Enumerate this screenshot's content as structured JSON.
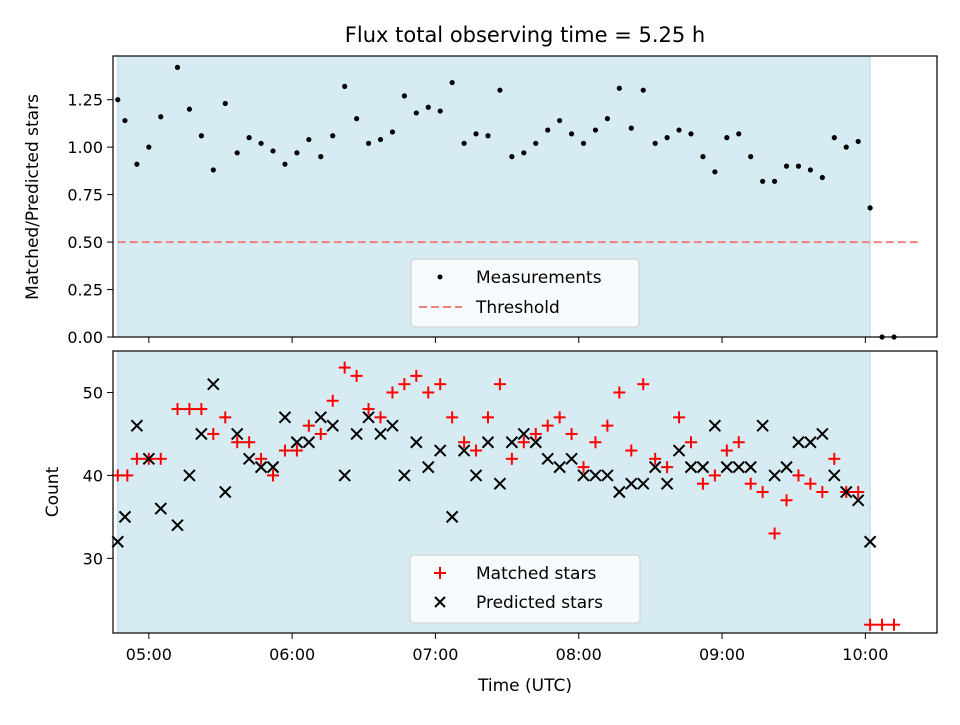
{
  "chart_data": [
    {
      "type": "scatter",
      "title": "Flux total observing time = 5.25 h",
      "ylabel": "Matched/Predicted stars",
      "xlabel": "",
      "xlim": [
        "04:45",
        "10:30"
      ],
      "ylim": [
        0.0,
        1.48
      ],
      "yticks": [
        0.0,
        0.25,
        0.5,
        0.75,
        1.0,
        1.25
      ],
      "ytick_labels": [
        "0.00",
        "0.25",
        "0.50",
        "0.75",
        "1.00",
        "1.25"
      ],
      "observing_window": [
        "04:47",
        "10:02"
      ],
      "legend_placement": "bottom-center",
      "series": [
        {
          "name": "Measurements",
          "marker": "dot",
          "color": "#000000",
          "x": [
            "04:47",
            "04:50",
            "04:55",
            "05:00",
            "05:05",
            "05:12",
            "05:17",
            "05:22",
            "05:27",
            "05:32",
            "05:37",
            "05:42",
            "05:47",
            "05:52",
            "05:57",
            "06:02",
            "06:07",
            "06:12",
            "06:17",
            "06:22",
            "06:27",
            "06:32",
            "06:37",
            "06:42",
            "06:47",
            "06:52",
            "06:57",
            "07:02",
            "07:07",
            "07:12",
            "07:17",
            "07:22",
            "07:27",
            "07:32",
            "07:37",
            "07:42",
            "07:47",
            "07:52",
            "07:57",
            "08:02",
            "08:07",
            "08:12",
            "08:17",
            "08:22",
            "08:27",
            "08:32",
            "08:37",
            "08:42",
            "08:47",
            "08:52",
            "08:57",
            "09:02",
            "09:07",
            "09:12",
            "09:17",
            "09:22",
            "09:27",
            "09:32",
            "09:37",
            "09:42",
            "09:47",
            "09:52",
            "09:57",
            "10:02",
            "10:07",
            "10:12"
          ],
          "y": [
            1.25,
            1.14,
            0.91,
            1.0,
            1.16,
            1.42,
            1.2,
            1.06,
            0.88,
            1.23,
            0.97,
            1.05,
            1.02,
            0.98,
            0.91,
            0.97,
            1.04,
            0.95,
            1.06,
            1.32,
            1.15,
            1.02,
            1.04,
            1.08,
            1.27,
            1.18,
            1.21,
            1.19,
            1.34,
            1.02,
            1.07,
            1.06,
            1.3,
            0.95,
            0.97,
            1.02,
            1.09,
            1.14,
            1.07,
            1.02,
            1.09,
            1.15,
            1.31,
            1.1,
            1.3,
            1.02,
            1.05,
            1.09,
            1.07,
            0.95,
            0.87,
            1.05,
            1.07,
            0.95,
            0.82,
            0.82,
            0.9,
            0.9,
            0.88,
            0.84,
            1.05,
            1.0,
            1.03,
            0.68,
            0.0,
            0.0
          ]
        },
        {
          "name": "Threshold",
          "marker": "dashed-line",
          "color": "#f08080",
          "x": [
            "04:47",
            "10:22"
          ],
          "y": [
            0.5,
            0.5
          ]
        }
      ]
    },
    {
      "type": "scatter",
      "title": "",
      "ylabel": "Count",
      "xlabel": "Time (UTC)",
      "xlim": [
        "04:45",
        "10:30"
      ],
      "ylim": [
        21,
        55
      ],
      "yticks": [
        30,
        40,
        50
      ],
      "ytick_labels": [
        "30",
        "40",
        "50"
      ],
      "xticks": [
        "05:00",
        "06:00",
        "07:00",
        "08:00",
        "09:00",
        "10:00"
      ],
      "xtick_labels": [
        "05:00",
        "06:00",
        "07:00",
        "08:00",
        "09:00",
        "10:00"
      ],
      "observing_window": [
        "04:47",
        "10:02"
      ],
      "legend_placement": "bottom-center",
      "series": [
        {
          "name": "Matched stars",
          "marker": "plus",
          "color": "#ff0000",
          "x": [
            "04:47",
            "04:51",
            "04:55",
            "05:00",
            "05:05",
            "05:12",
            "05:17",
            "05:22",
            "05:27",
            "05:32",
            "05:37",
            "05:42",
            "05:47",
            "05:52",
            "05:57",
            "06:02",
            "06:07",
            "06:12",
            "06:17",
            "06:22",
            "06:27",
            "06:32",
            "06:37",
            "06:42",
            "06:47",
            "06:52",
            "06:57",
            "07:02",
            "07:07",
            "07:12",
            "07:17",
            "07:22",
            "07:27",
            "07:32",
            "07:37",
            "07:42",
            "07:47",
            "07:52",
            "07:57",
            "08:02",
            "08:07",
            "08:12",
            "08:17",
            "08:22",
            "08:27",
            "08:32",
            "08:37",
            "08:42",
            "08:47",
            "08:52",
            "08:57",
            "09:02",
            "09:07",
            "09:12",
            "09:17",
            "09:22",
            "09:27",
            "09:32",
            "09:37",
            "09:42",
            "09:47",
            "09:52",
            "09:57",
            "10:02",
            "10:07",
            "10:12"
          ],
          "y": [
            40,
            40,
            42,
            42,
            42,
            48,
            48,
            48,
            45,
            47,
            44,
            44,
            42,
            40,
            43,
            43,
            46,
            45,
            49,
            53,
            52,
            48,
            47,
            50,
            51,
            52,
            50,
            51,
            47,
            44,
            43,
            47,
            51,
            42,
            44,
            45,
            46,
            47,
            45,
            41,
            44,
            46,
            50,
            43,
            51,
            42,
            41,
            47,
            44,
            39,
            40,
            43,
            44,
            39,
            38,
            33,
            37,
            40,
            39,
            38,
            42,
            38,
            38,
            22,
            22,
            22
          ]
        },
        {
          "name": "Predicted stars",
          "marker": "x",
          "color": "#000000",
          "x": [
            "04:47",
            "04:50",
            "04:55",
            "05:00",
            "05:05",
            "05:12",
            "05:17",
            "05:22",
            "05:27",
            "05:32",
            "05:37",
            "05:42",
            "05:47",
            "05:52",
            "05:57",
            "06:02",
            "06:07",
            "06:12",
            "06:17",
            "06:22",
            "06:27",
            "06:32",
            "06:37",
            "06:42",
            "06:47",
            "06:52",
            "06:57",
            "07:02",
            "07:07",
            "07:12",
            "07:17",
            "07:22",
            "07:27",
            "07:32",
            "07:37",
            "07:42",
            "07:47",
            "07:52",
            "07:57",
            "08:02",
            "08:07",
            "08:12",
            "08:17",
            "08:22",
            "08:27",
            "08:32",
            "08:37",
            "08:42",
            "08:47",
            "08:52",
            "08:57",
            "09:02",
            "09:07",
            "09:12",
            "09:17",
            "09:22",
            "09:27",
            "09:32",
            "09:37",
            "09:42",
            "09:47",
            "09:52",
            "09:57",
            "10:02"
          ],
          "y": [
            32,
            35,
            46,
            42,
            36,
            34,
            40,
            45,
            51,
            38,
            45,
            42,
            41,
            41,
            47,
            44,
            44,
            47,
            46,
            40,
            45,
            47,
            45,
            46,
            40,
            44,
            41,
            43,
            35,
            43,
            40,
            44,
            39,
            44,
            45,
            44,
            42,
            41,
            42,
            40,
            40,
            40,
            38,
            39,
            39,
            41,
            39,
            43,
            41,
            41,
            46,
            41,
            41,
            41,
            46,
            40,
            41,
            44,
            44,
            45,
            40,
            38,
            37,
            32
          ]
        }
      ]
    }
  ]
}
